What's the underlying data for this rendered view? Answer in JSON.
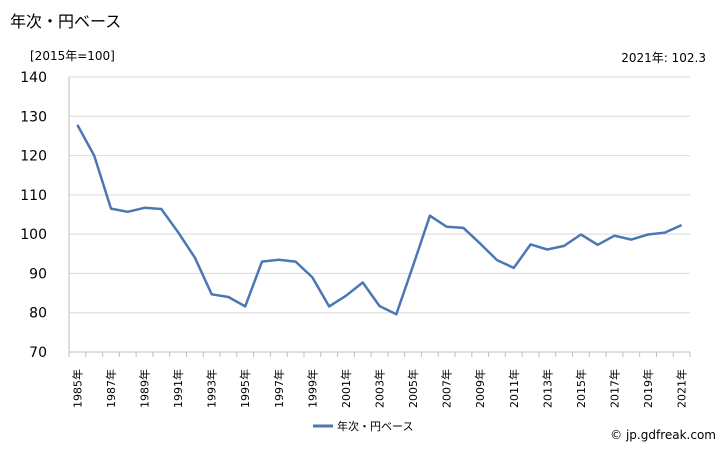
{
  "page": {
    "title": "年次・円ベース",
    "unit_note": "[2015年=100]",
    "latest_note": "2021年: 102.3",
    "credit": "© jp.gdfreak.com"
  },
  "chart_data": {
    "type": "line",
    "title": "年次・円ベース",
    "xlabel": "",
    "ylabel": "[2015年=100]",
    "ylim": [
      70,
      140
    ],
    "yticks": [
      70,
      80,
      90,
      100,
      110,
      120,
      130,
      140
    ],
    "x": [
      "1985年",
      "1986年",
      "1987年",
      "1988年",
      "1989年",
      "1990年",
      "1991年",
      "1992年",
      "1993年",
      "1994年",
      "1995年",
      "1996年",
      "1997年",
      "1998年",
      "1999年",
      "2000年",
      "2001年",
      "2002年",
      "2003年",
      "2004年",
      "2005年",
      "2006年",
      "2007年",
      "2008年",
      "2009年",
      "2010年",
      "2011年",
      "2012年",
      "2013年",
      "2014年",
      "2015年",
      "2016年",
      "2017年",
      "2018年",
      "2019年",
      "2020年",
      "2021年"
    ],
    "xtick_labels": [
      "1985年",
      "1987年",
      "1989年",
      "1991年",
      "1993年",
      "1995年",
      "1997年",
      "1999年",
      "2001年",
      "2003年",
      "2005年",
      "2007年",
      "2009年",
      "2011年",
      "2013年",
      "2015年",
      "2017年",
      "2019年",
      "2021年"
    ],
    "series": [
      {
        "name": "年次・円ベース",
        "color": "#4a78b5",
        "values": [
          127.8,
          120.0,
          106.5,
          105.7,
          106.7,
          106.4,
          100.5,
          94.0,
          84.7,
          84.0,
          81.6,
          93.0,
          93.5,
          93.0,
          89.0,
          81.6,
          84.3,
          87.7,
          81.7,
          79.6,
          92.0,
          104.7,
          101.9,
          101.6,
          97.6,
          93.4,
          91.4,
          97.4,
          96.1,
          97.0,
          99.9,
          97.3,
          99.6,
          98.6,
          99.9,
          100.4,
          102.3
        ]
      }
    ],
    "grid": "horizontal",
    "legend_position": "bottom"
  }
}
